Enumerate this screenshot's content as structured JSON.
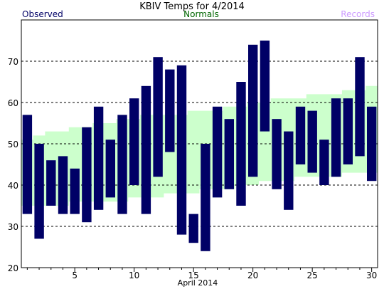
{
  "chart_data": {
    "type": "bar",
    "title": "KBIV Temps for 4/2014",
    "legend": [
      "Observed",
      "Normals",
      "Records"
    ],
    "xlabel": "April 2014",
    "ylabel": "",
    "x_ticks": [
      5,
      10,
      15,
      20,
      25,
      30
    ],
    "y_ticks": [
      20,
      30,
      40,
      50,
      60,
      70
    ],
    "ylim": [
      20,
      80
    ],
    "xlim": [
      0.5,
      30.5
    ],
    "grid": "horizontal dashed",
    "colors": {
      "observed": "#000066",
      "normals": "#ccffcc",
      "records": "#cc99ff",
      "normals_text": "#006600"
    },
    "days": [
      1,
      2,
      3,
      4,
      5,
      6,
      7,
      8,
      9,
      10,
      11,
      12,
      13,
      14,
      15,
      16,
      17,
      18,
      19,
      20,
      21,
      22,
      23,
      24,
      25,
      26,
      27,
      28,
      29,
      30
    ],
    "observed_high": [
      57,
      50,
      46,
      47,
      44,
      54,
      59,
      51,
      57,
      61,
      64,
      71,
      68,
      69,
      33,
      50,
      59,
      56,
      65,
      74,
      75,
      56,
      53,
      59,
      58,
      51,
      61,
      61,
      71,
      59
    ],
    "observed_low": [
      33,
      27,
      35,
      33,
      33,
      31,
      34,
      37,
      33,
      40,
      33,
      42,
      48,
      28,
      26,
      24,
      37,
      39,
      35,
      42,
      53,
      39,
      34,
      45,
      43,
      40,
      42,
      45,
      47,
      41
    ],
    "normal_high": [
      51,
      52,
      53,
      53,
      54,
      54,
      55,
      55,
      56,
      56,
      57,
      57,
      57,
      57,
      58,
      58,
      58,
      59,
      59,
      60,
      60,
      61,
      61,
      61,
      62,
      62,
      62,
      63,
      63,
      64
    ],
    "normal_low": [
      35,
      35,
      35,
      35,
      36,
      36,
      36,
      36,
      36,
      37,
      37,
      37,
      38,
      38,
      38,
      39,
      39,
      39,
      40,
      40,
      41,
      41,
      41,
      42,
      42,
      42,
      42,
      43,
      43,
      43
    ]
  }
}
